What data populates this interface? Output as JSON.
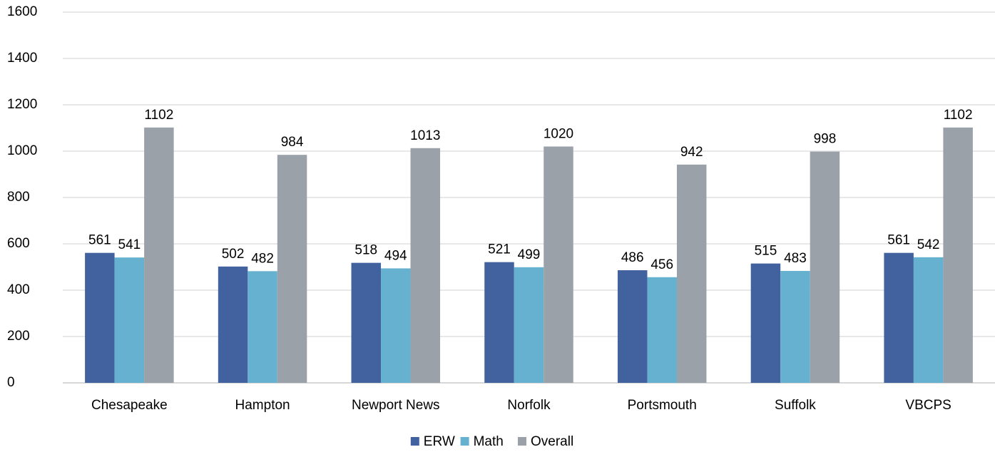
{
  "chart_data": {
    "type": "bar",
    "title": "",
    "xlabel": "",
    "ylabel": "",
    "ylim": [
      0,
      1600
    ],
    "yticks": [
      0,
      200,
      400,
      600,
      800,
      1000,
      1200,
      1400,
      1600
    ],
    "grid": true,
    "legend_position": "bottom",
    "categories": [
      "Chesapeake",
      "Hampton",
      "Newport News",
      "Norfolk",
      "Portsmouth",
      "Suffolk",
      "VBCPS"
    ],
    "series": [
      {
        "name": "ERW",
        "color": "#41619f",
        "values": [
          561,
          502,
          518,
          521,
          486,
          515,
          561
        ]
      },
      {
        "name": "Math",
        "color": "#66b1cf",
        "values": [
          541,
          482,
          494,
          499,
          456,
          483,
          542
        ]
      },
      {
        "name": "Overall",
        "color": "#9aa1a9",
        "values": [
          1102,
          984,
          1013,
          1020,
          942,
          998,
          1102
        ]
      }
    ]
  }
}
